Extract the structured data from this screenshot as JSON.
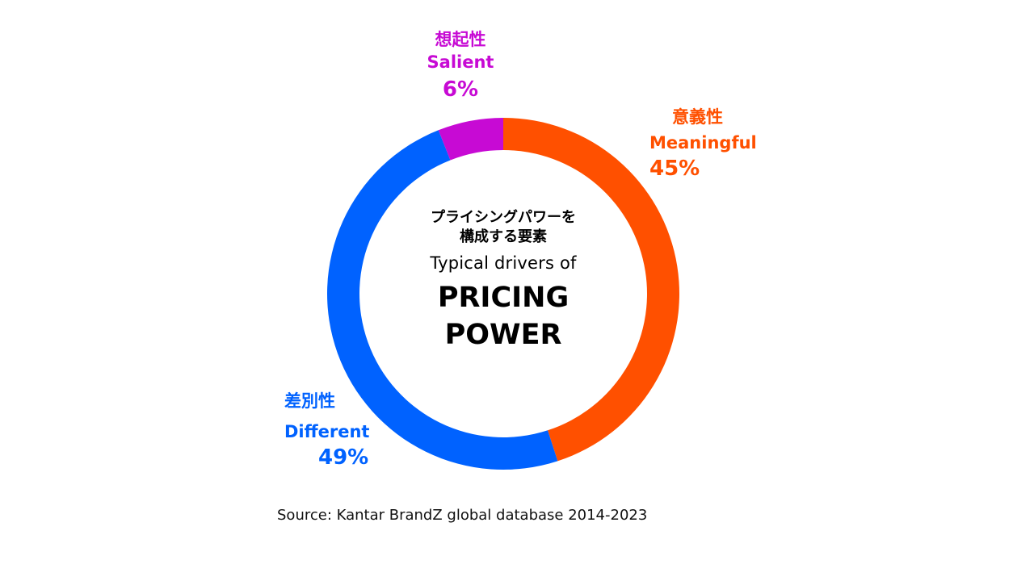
{
  "chart_data": {
    "type": "pie",
    "donut": true,
    "segments": [
      {
        "jp": "意義性",
        "en": "Meaningful",
        "value": 45,
        "label": "45%",
        "color": "#ff5000"
      },
      {
        "jp": "差別性",
        "en": "Different",
        "value": 49,
        "label": "49%",
        "color": "#0062ff"
      },
      {
        "jp": "想起性",
        "en": "Salient",
        "value": 6,
        "label": "6%",
        "color": "#c70ad4"
      }
    ],
    "center": {
      "jp_line1": "プライシングパワーを",
      "jp_line2": "構成する要素",
      "en_small": "Typical drivers of",
      "en_big_line1": "PRICING",
      "en_big_line2": "POWER"
    }
  },
  "source": "Source: Kantar BrandZ global database 2014-2023"
}
